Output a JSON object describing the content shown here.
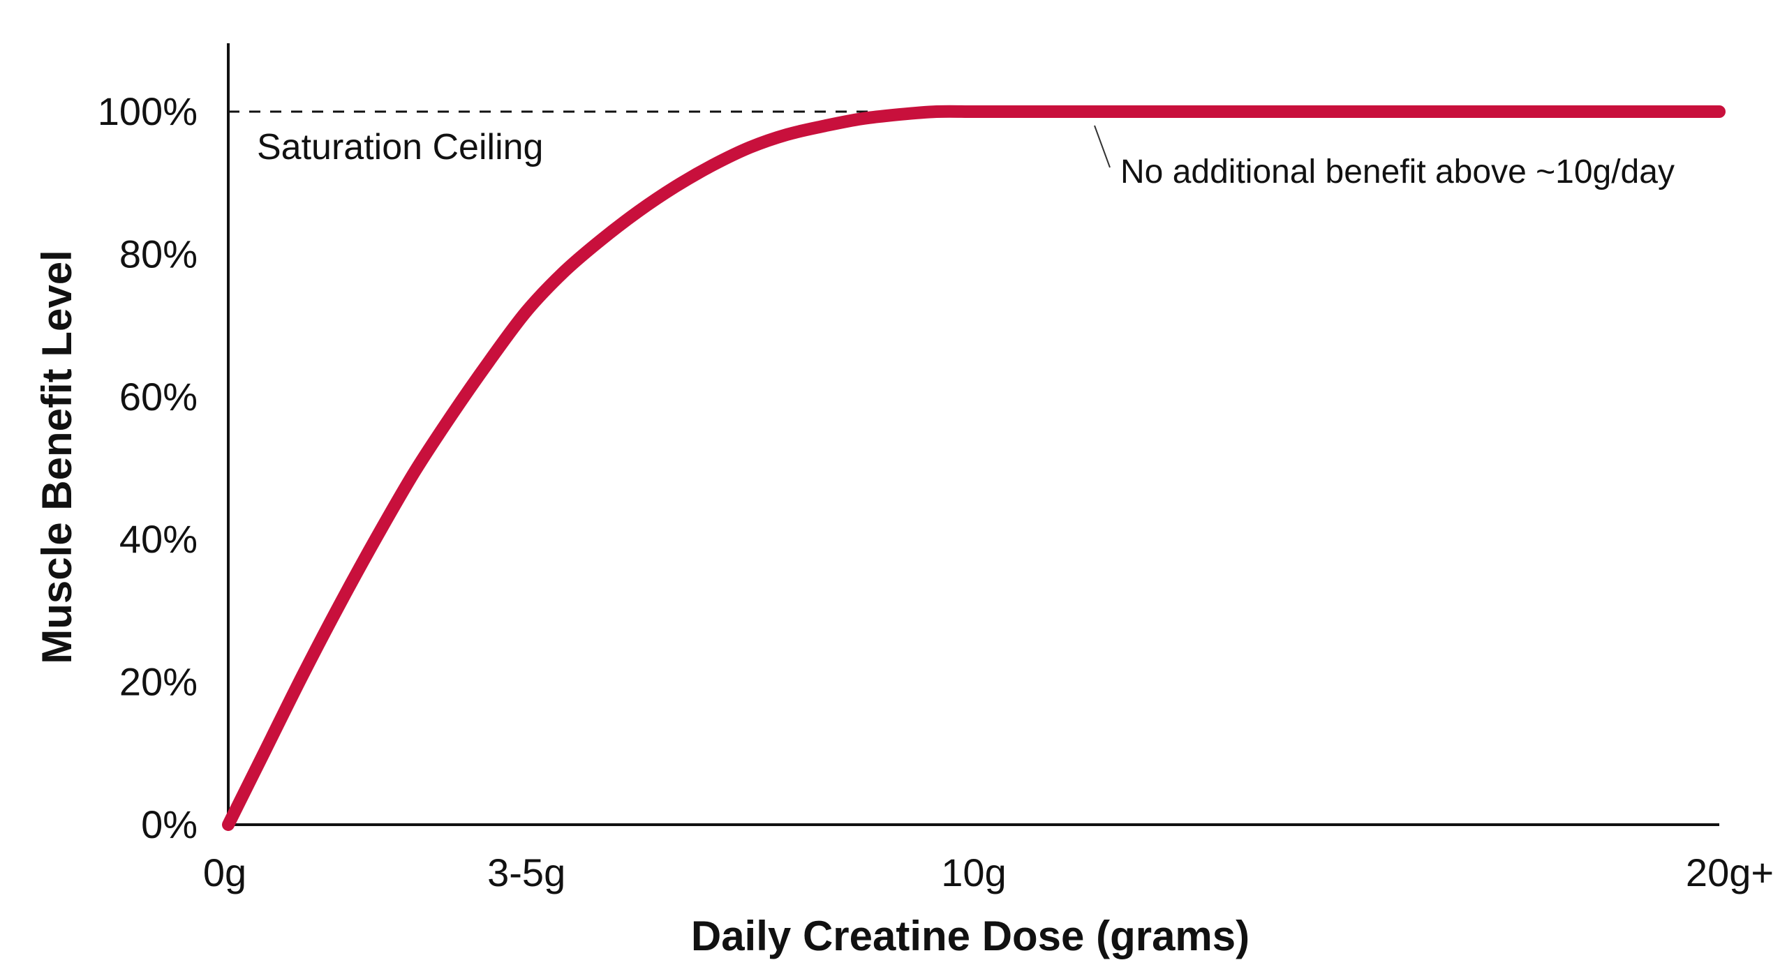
{
  "chart_data": {
    "type": "line",
    "title": "",
    "xlabel": "Daily Creatine Dose (grams)",
    "ylabel": "Muscle Benefit Level",
    "x_ticks": [
      {
        "value": 0,
        "label": "0g"
      },
      {
        "value": 4,
        "label": "3-5g"
      },
      {
        "value": 10,
        "label": "10g"
      },
      {
        "value": 20,
        "label": "20g+"
      }
    ],
    "y_ticks": [
      {
        "value": 0,
        "label": "0%"
      },
      {
        "value": 20,
        "label": "20%"
      },
      {
        "value": 40,
        "label": "40%"
      },
      {
        "value": 60,
        "label": "60%"
      },
      {
        "value": 80,
        "label": "80%"
      },
      {
        "value": 100,
        "label": "100%"
      }
    ],
    "xlim": [
      0,
      20
    ],
    "ylim": [
      0,
      110
    ],
    "grid": false,
    "series": [
      {
        "color": "#c8103c",
        "x": [
          0,
          0.5,
          1,
          1.5,
          2,
          2.5,
          3,
          3.5,
          4,
          4.5,
          5,
          5.5,
          6,
          6.5,
          7,
          7.5,
          8,
          8.5,
          9,
          9.5,
          10,
          10.5,
          11,
          12,
          14,
          16,
          18,
          20
        ],
        "y": [
          0,
          10.5,
          21,
          31,
          40.5,
          49.5,
          57.5,
          65,
          72,
          77.5,
          82,
          86,
          89.5,
          92.5,
          95,
          96.8,
          98,
          99,
          99.6,
          100,
          100,
          100,
          100,
          100,
          100,
          100,
          100,
          100
        ]
      }
    ],
    "reference_line": {
      "y": 100,
      "style": "dashed",
      "label": "Saturation Ceiling"
    },
    "annotation": {
      "text": "No additional benefit above ~10g/day",
      "x": 11.5,
      "y": 100
    }
  }
}
